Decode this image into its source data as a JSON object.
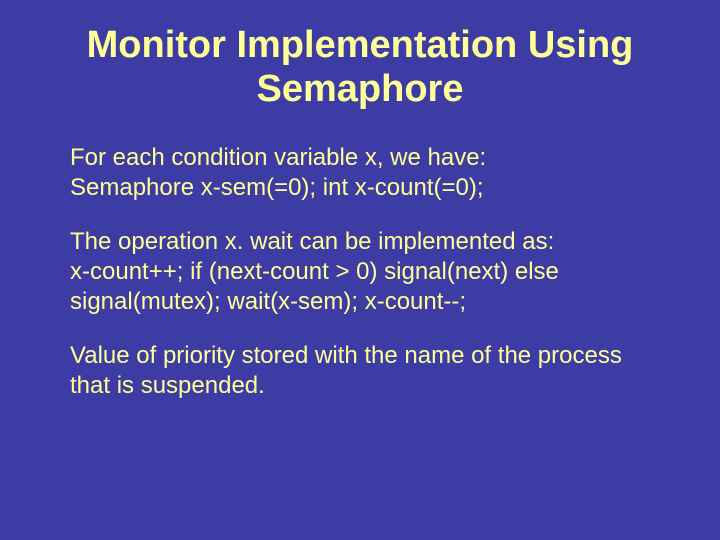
{
  "slide": {
    "background_color": "#3c3ca4",
    "text_color": "#ffff99",
    "title": "Monitor Implementation Using Semaphore",
    "title_fontsize": 38,
    "title_fontweight": "bold",
    "body_fontsize": 24,
    "paragraphs": [
      {
        "lines": [
          "For each condition variable x, we have:",
          "Semaphore x-sem(=0); int x-count(=0);"
        ]
      },
      {
        "lines": [
          "The operation x. wait can be implemented as:",
          "x-count++; if (next-count > 0) signal(next) else signal(mutex); wait(x-sem); x-count--;"
        ]
      },
      {
        "lines": [
          "Value of priority stored with the name of the process that is suspended."
        ]
      }
    ]
  }
}
